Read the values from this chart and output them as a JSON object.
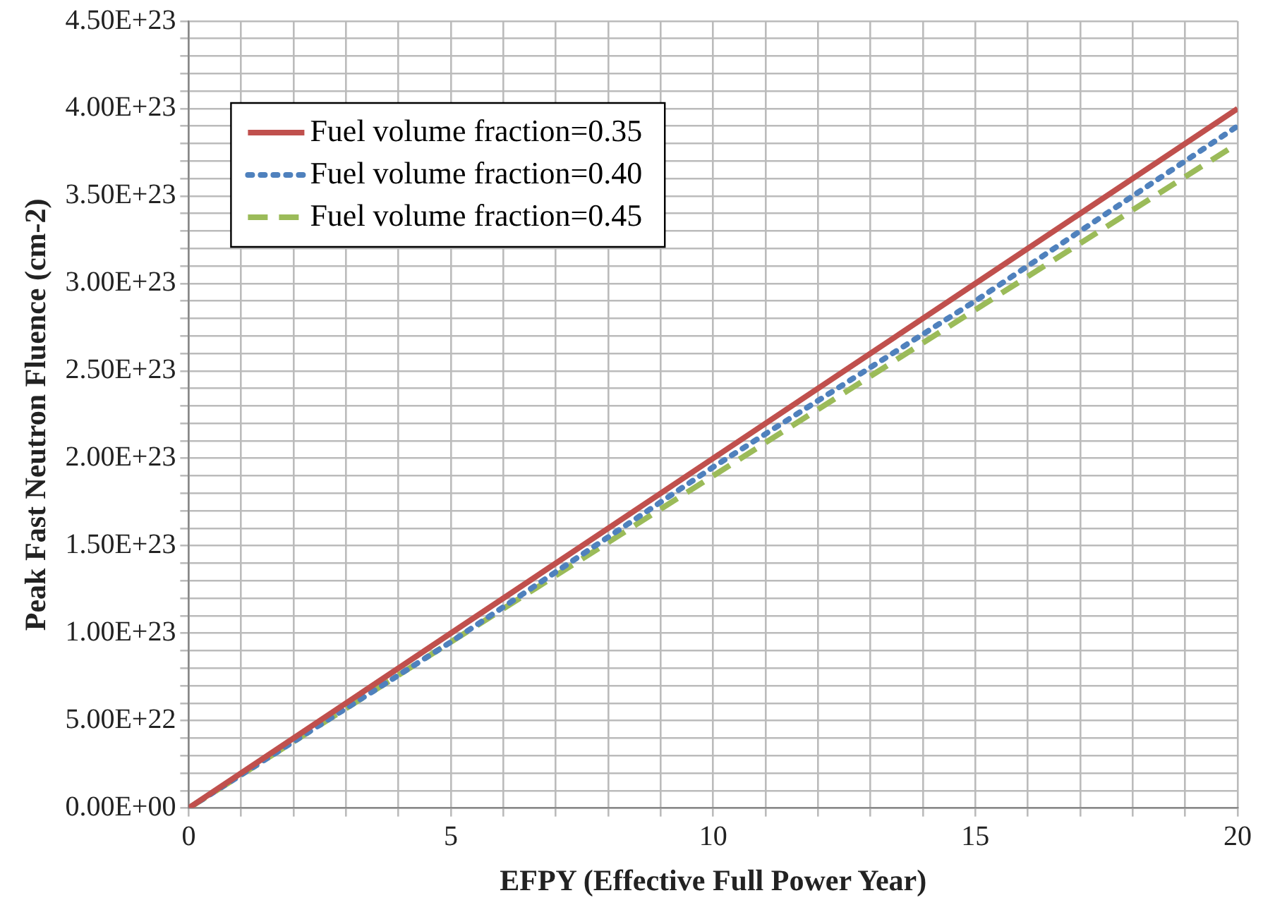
{
  "chart_data": {
    "type": "line",
    "xlabel": "EFPY (Effective Full Power Year)",
    "ylabel": "Peak Fast Neutron Fluence (cm-2)",
    "x": [
      0,
      5,
      10,
      15,
      20
    ],
    "series": [
      {
        "name": "Fuel volume fraction=0.35",
        "color": "#c0504d",
        "line_style": "solid",
        "values": [
          0,
          1e+23,
          2e+23,
          3e+23,
          4e+23
        ]
      },
      {
        "name": "Fuel volume fraction=0.40",
        "color": "#4f81bd",
        "line_style": "dotted",
        "values": [
          0,
          9.5e+22,
          1.95e+23,
          2.9e+23,
          3.9e+23
        ]
      },
      {
        "name": "Fuel volume fraction=0.45",
        "color": "#9bbb59",
        "line_style": "dashed",
        "values": [
          0,
          9.5e+22,
          1.9e+23,
          2.85e+23,
          3.8e+23
        ]
      }
    ],
    "xlim": [
      0,
      20
    ],
    "xticks": [
      0,
      {
        "value": 1,
        "label": null
      },
      {
        "value": 2,
        "label": null
      },
      {
        "value": 3,
        "label": null
      },
      {
        "value": 4,
        "label": null
      },
      5,
      {
        "value": 6,
        "label": null
      },
      {
        "value": 7,
        "label": null
      },
      {
        "value": 8,
        "label": null
      },
      {
        "value": 9,
        "label": null
      },
      10,
      {
        "value": 11,
        "label": null
      },
      {
        "value": 12,
        "label": null
      },
      {
        "value": 13,
        "label": null
      },
      {
        "value": 14,
        "label": null
      },
      15,
      {
        "value": 16,
        "label": null
      },
      {
        "value": 17,
        "label": null
      },
      {
        "value": 18,
        "label": null
      },
      {
        "value": 19,
        "label": null
      },
      20
    ],
    "ylim": [
      0,
      4.5e+23
    ],
    "yticks": [
      {
        "value": 0,
        "label": "0.00E+00"
      },
      {
        "value": 1e+22,
        "label": null
      },
      {
        "value": 2e+22,
        "label": null
      },
      {
        "value": 3e+22,
        "label": null
      },
      {
        "value": 4e+22,
        "label": null
      },
      {
        "value": 5e+22,
        "label": "5.00E+22"
      },
      {
        "value": 6e+22,
        "label": null
      },
      {
        "value": 7e+22,
        "label": null
      },
      {
        "value": 8e+22,
        "label": null
      },
      {
        "value": 9e+22,
        "label": null
      },
      {
        "value": 1e+23,
        "label": "1.00E+23"
      },
      {
        "value": 1.1e+23,
        "label": null
      },
      {
        "value": 1.2e+23,
        "label": null
      },
      {
        "value": 1.3e+23,
        "label": null
      },
      {
        "value": 1.4e+23,
        "label": null
      },
      {
        "value": 1.5e+23,
        "label": "1.50E+23"
      },
      {
        "value": 1.6e+23,
        "label": null
      },
      {
        "value": 1.7e+23,
        "label": null
      },
      {
        "value": 1.8e+23,
        "label": null
      },
      {
        "value": 1.9e+23,
        "label": null
      },
      {
        "value": 2e+23,
        "label": "2.00E+23"
      },
      {
        "value": 2.1e+23,
        "label": null
      },
      {
        "value": 2.2e+23,
        "label": null
      },
      {
        "value": 2.3e+23,
        "label": null
      },
      {
        "value": 2.4e+23,
        "label": null
      },
      {
        "value": 2.5e+23,
        "label": "2.50E+23"
      },
      {
        "value": 2.6e+23,
        "label": null
      },
      {
        "value": 2.7e+23,
        "label": null
      },
      {
        "value": 2.8e+23,
        "label": null
      },
      {
        "value": 2.9e+23,
        "label": null
      },
      {
        "value": 3e+23,
        "label": "3.00E+23"
      },
      {
        "value": 3.1e+23,
        "label": null
      },
      {
        "value": 3.2e+23,
        "label": null
      },
      {
        "value": 3.3e+23,
        "label": null
      },
      {
        "value": 3.4e+23,
        "label": null
      },
      {
        "value": 3.5e+23,
        "label": "3.50E+23"
      },
      {
        "value": 3.6e+23,
        "label": null
      },
      {
        "value": 3.7e+23,
        "label": null
      },
      {
        "value": 3.8e+23,
        "label": null
      },
      {
        "value": 3.9e+23,
        "label": null
      },
      {
        "value": 4e+23,
        "label": "4.00E+23"
      },
      {
        "value": 4.1e+23,
        "label": null
      },
      {
        "value": 4.2e+23,
        "label": null
      },
      {
        "value": 4.3e+23,
        "label": null
      },
      {
        "value": 4.4e+23,
        "label": null
      },
      {
        "value": 4.5e+23,
        "label": "4.50E+23"
      }
    ],
    "grid": true,
    "legend": "top left",
    "marker": "none"
  }
}
